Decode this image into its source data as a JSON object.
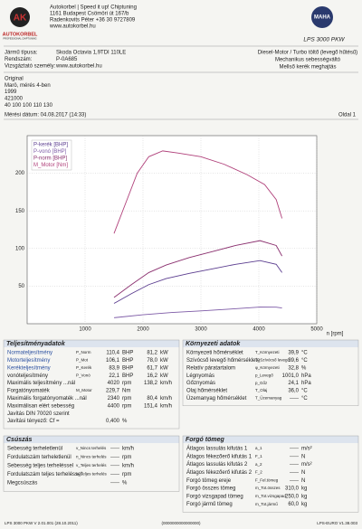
{
  "header": {
    "logo_text": "AUTOKORBEL",
    "logo_sub": "PROFESSIONAL CHIPTUNING",
    "company": [
      "Autokorbel | Speed it up! Chiptuning",
      "1161 Budapest Csömöri út 167/b",
      "Radenkovits Péter +36 30 9727809",
      "www.autokorbel.hu"
    ],
    "brand": "MAHA",
    "model": "LPS 3000 PKW"
  },
  "vehicle": {
    "rows": [
      {
        "label": "Jármű típusa:",
        "value": "Skoda Octavia 1,9TDI 110LE"
      },
      {
        "label": "Rendszám:",
        "value": "P-0A685"
      },
      {
        "label": "Vizsgáztató személy:",
        "value": "www.autokorbel.hu"
      }
    ],
    "specs": [
      "Diesel-Motor / Turbo töltő (levegő hűtésű)",
      "Mechanikus sebességváltó",
      "Mellső kerék meghajtás"
    ]
  },
  "notes": [
    "Original",
    "Marö, mérés 4-ben",
    "1999",
    "421000",
    "40 100 100 110 130"
  ],
  "date": "Mérési dátum: 04.08.2017 (14:33)",
  "page": "Oldal 1",
  "chart": {
    "type": "line",
    "x_label": "n [rpm]",
    "xlim": [
      0,
      5000
    ],
    "xticks": [
      1000,
      2000,
      3000,
      4000,
      5000
    ],
    "ylim": [
      0,
      250
    ],
    "yticks": [
      50,
      100,
      150,
      200
    ],
    "grid": true,
    "series": [
      {
        "name": "P-kerék [BHP]",
        "color": "#5b3d8f",
        "x": [
          1500,
          1800,
          2100,
          2400,
          2800,
          3200,
          3600,
          4020,
          4300,
          4400
        ],
        "values": [
          27,
          40,
          52,
          60,
          67,
          73,
          79,
          83.9,
          79,
          68
        ]
      },
      {
        "name": "P-vonó [BHP]",
        "color": "#7d5aa6",
        "x": [
          1500,
          2000,
          2500,
          3000,
          3500,
          4020,
          4300,
          4400
        ],
        "values": [
          8,
          12,
          15,
          17,
          19.5,
          22.1,
          22,
          21
        ]
      },
      {
        "name": "P-norm [BHP]",
        "color": "#8a2f6e",
        "x": [
          1500,
          1800,
          2100,
          2400,
          2800,
          3200,
          3600,
          4020,
          4300,
          4400
        ],
        "values": [
          35,
          52,
          68,
          78,
          88,
          96,
          104,
          110.4,
          104,
          90
        ]
      },
      {
        "name": "M_Motor [Nm]",
        "color": "#b0407a",
        "x": [
          1500,
          1700,
          1900,
          2100,
          2340,
          2600,
          3000,
          3400,
          3800,
          4100,
          4300,
          4400
        ],
        "values": [
          120,
          160,
          200,
          222,
          229.7,
          227,
          222,
          212,
          198,
          185,
          165,
          140
        ]
      }
    ]
  },
  "performance": {
    "title": "Teljesítményadatok",
    "rows": [
      {
        "label": "Normateljesítmény",
        "symbol": "P_Norm",
        "value": "110,4",
        "unit": "BHP",
        "value2": "81,2",
        "unit2": "kW"
      },
      {
        "label": "Motorteljesítmény",
        "symbol": "P_Mot",
        "value": "106,1",
        "unit": "BHP",
        "value2": "78,0",
        "unit2": "kW"
      },
      {
        "label": "Kerékteljesítmény",
        "symbol": "P_Kerék",
        "value": "83,9",
        "unit": "BHP",
        "value2": "61,7",
        "unit2": "kW"
      },
      {
        "label": "vonóteljesítmény",
        "symbol": "P_Vonó",
        "value": "22,1",
        "unit": "BHP",
        "value2": "16,2",
        "unit2": "kW"
      },
      {
        "label": "Maximális teljesítmény ...nál",
        "value": "4020",
        "unit": "rpm",
        "value2": "138,2",
        "unit2": "km/h"
      },
      {
        "label": "Forgatónyomaték",
        "symbol": "M_Motor",
        "value": "229,7",
        "unit": "Nm"
      },
      {
        "label": "Maximális forgatónyomaték ...nál",
        "value": "2340",
        "unit": "rpm",
        "value2": "80,4",
        "unit2": "km/h"
      },
      {
        "label": "Maximálisan elért sebesség",
        "value": "4400",
        "unit": "rpm",
        "value2": "151,4",
        "unit2": "km/h"
      },
      {
        "label": "Javítás DIN 70020 szerint"
      },
      {
        "label": "Javítási tényező: Cf =",
        "value": "0,400",
        "unit": "%"
      }
    ]
  },
  "environment": {
    "title": "Környezeti adatok",
    "rows": [
      {
        "label": "Környezeti hőmérséklet",
        "symbol": "T_Környezeti",
        "value": "39,9",
        "unit": "°C"
      },
      {
        "label": "Szívócső levegő hőmérséklete",
        "symbol": "T_Szívócső levegő",
        "value": "39,6",
        "unit": "°C"
      },
      {
        "label": "Relatív páratartalom",
        "symbol": "φ_Környezeti",
        "value": "32,8",
        "unit": "%"
      },
      {
        "label": "Légnyomás",
        "symbol": "p_Levegő",
        "value": "1001,0",
        "unit": "hPa"
      },
      {
        "label": "Gőznyomás",
        "symbol": "p_Gőz",
        "value": "24,1",
        "unit": "hPa"
      },
      {
        "label": "Olaj hőmérséklet",
        "symbol": "T_Olaj",
        "value": "36,0",
        "unit": "°C"
      },
      {
        "label": "Üzemanyag hőmérséklet",
        "symbol": "T_Üzemanyag",
        "value": "-----",
        "unit": "°C"
      }
    ]
  },
  "slip": {
    "title": "Csúszás",
    "rows": [
      {
        "label": "Sebesség terheletlenül",
        "symbol": "v_Nincs terhelés",
        "value": "-----",
        "unit": "km/h"
      },
      {
        "label": "Fordulatszám terheletlenül",
        "symbol": "n_Nincs terhelés",
        "value": "-----",
        "unit": "rpm"
      },
      {
        "label": "Sebesség teljes terheléssel",
        "symbol": "v_Teljes terhelés",
        "value": "-----",
        "unit": "km/h"
      },
      {
        "label": "Fordulatszám teljes terheléssel",
        "symbol": "n_Teljes terhelés",
        "value": "-----",
        "unit": "rpm"
      },
      {
        "label": "Megcsúszás",
        "value": "-----",
        "unit": "%"
      }
    ]
  },
  "mass": {
    "title": "Forgó tömeg",
    "rows": [
      {
        "label": "Átlagos lassulás kifutás 1",
        "symbol": "a_1",
        "value": "-----",
        "unit": "m/s²"
      },
      {
        "label": "Átlagos fékezőerő kifutás 1",
        "symbol": "F_1",
        "value": "-----",
        "unit": "N"
      },
      {
        "label": "Átlagos lassulás kifutás 2",
        "symbol": "a_2",
        "value": "-----",
        "unit": "m/s²"
      },
      {
        "label": "Átlagos fékezőerő kifutás 2",
        "symbol": "F_2",
        "value": "-----",
        "unit": "N"
      },
      {
        "label": "Forgó tömeg ereje",
        "symbol": "F_Fel.tömeg",
        "value": "-----",
        "unit": "N"
      },
      {
        "label": "Forgó összes tömeg",
        "symbol": "m_Tot.összes",
        "value": "310,0",
        "unit": "kg"
      },
      {
        "label": "Forgó vizsgapad tömeg",
        "symbol": "m_Tot.vizsgapad",
        "value": "250,0",
        "unit": "kg"
      },
      {
        "label": "Forgó jármű tömeg",
        "symbol": "m_Tot.jármű",
        "value": "60,0",
        "unit": "kg"
      }
    ]
  },
  "footer": [
    "LPS 3000 PKW V 2.01.001 (28.10.2011)",
    "(0000000000000000)",
    "LPS-EURO V1.38.003"
  ]
}
